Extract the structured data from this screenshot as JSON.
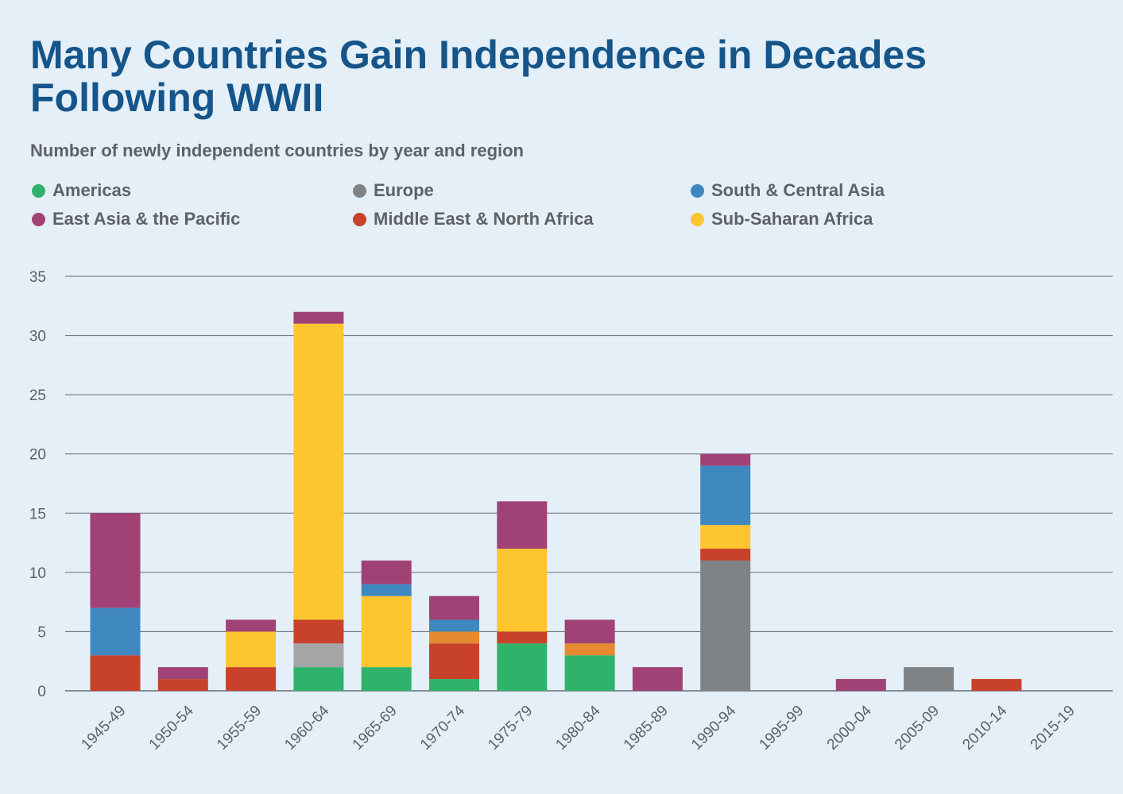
{
  "title": "Many Countries Gain Independence in Decades Following WWII",
  "subtitle": "Number of newly independent countries by year and region",
  "legend": [
    {
      "label": "Americas",
      "color": "#2fb36b"
    },
    {
      "label": "Europe",
      "color": "#7f8385"
    },
    {
      "label": "South & Central Asia",
      "color": "#3f88bf"
    },
    {
      "label": "East Asia & the Pacific",
      "color": "#a04275"
    },
    {
      "label": "Middle East & North Africa",
      "color": "#c8412a"
    },
    {
      "label": "Sub-Saharan Africa",
      "color": "#fdc630"
    }
  ],
  "chart_data": {
    "type": "bar",
    "stacked": true,
    "ylim": [
      0,
      35
    ],
    "yticks": [
      0,
      5,
      10,
      15,
      20,
      25,
      30,
      35
    ],
    "grid": true,
    "categories": [
      "1945-49",
      "1950-54",
      "1955-59",
      "1960-64",
      "1965-69",
      "1970-74",
      "1975-79",
      "1980-84",
      "1985-89",
      "1990-94",
      "1995-99",
      "2000-04",
      "2005-09",
      "2010-14",
      "2015-19"
    ],
    "series": [
      {
        "name": "Americas",
        "color": "#2fb36b",
        "values": [
          0,
          0,
          0,
          2,
          2,
          1,
          4,
          3,
          0,
          0,
          0,
          0,
          0,
          0,
          0
        ]
      },
      {
        "color": "#a3a5a6",
        "values": [
          0,
          0,
          0,
          2,
          0,
          0,
          0,
          0,
          0,
          0,
          0,
          0,
          0,
          0,
          0
        ]
      },
      {
        "name": "Europe",
        "color": "#7f8385",
        "values": [
          0,
          0,
          0,
          0,
          0,
          0,
          0,
          0,
          0,
          11,
          0,
          0,
          2,
          0,
          0
        ]
      },
      {
        "name": "Middle East & North Africa",
        "color": "#c8412a",
        "values": [
          3,
          1,
          2,
          2,
          0,
          3,
          1,
          0,
          0,
          1,
          0,
          0,
          0,
          1,
          0
        ]
      },
      {
        "color": "#e58a2e",
        "values": [
          0,
          0,
          0,
          0,
          0,
          1,
          0,
          1,
          0,
          0,
          0,
          0,
          0,
          0,
          0
        ]
      },
      {
        "name": "Sub-Saharan Africa",
        "color": "#fdc630",
        "values": [
          0,
          0,
          3,
          25,
          6,
          0,
          7,
          0,
          0,
          2,
          0,
          0,
          0,
          0,
          0
        ]
      },
      {
        "name": "South & Central Asia",
        "color": "#3f88bf",
        "values": [
          4,
          0,
          0,
          0,
          1,
          1,
          0,
          0,
          0,
          5,
          0,
          0,
          0,
          0,
          0
        ]
      },
      {
        "name": "East Asia & the Pacific",
        "color": "#a04275",
        "values": [
          8,
          1,
          1,
          1,
          2,
          2,
          4,
          2,
          2,
          1,
          0,
          1,
          0,
          0,
          0
        ]
      }
    ]
  }
}
